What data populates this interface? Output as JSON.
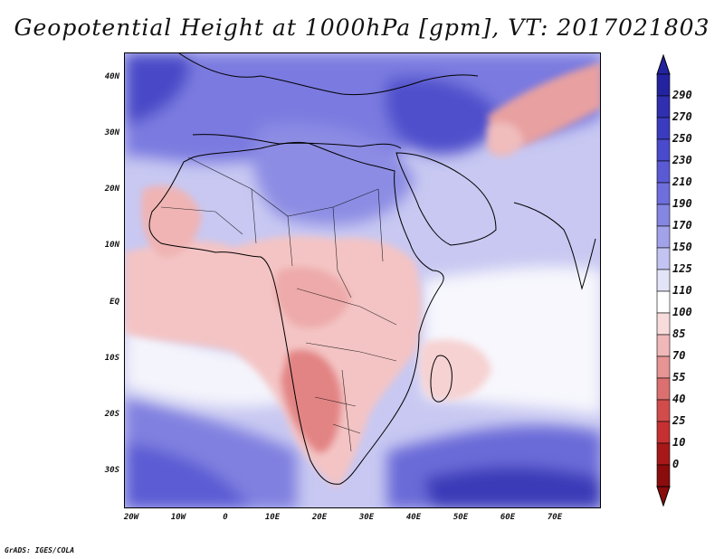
{
  "title": "Geopotential Height at 1000hPa [gpm], VT: 2017021803",
  "credit": "GrADS: IGES/COLA",
  "map": {
    "lat_labels": [
      "40N",
      "30N",
      "20N",
      "10N",
      "EQ",
      "10S",
      "20S",
      "30S"
    ],
    "lon_labels": [
      "20W",
      "10W",
      "0",
      "10E",
      "20E",
      "30E",
      "40E",
      "50E",
      "60E",
      "70E"
    ],
    "lon_range": [
      -22,
      80
    ],
    "lat_range": [
      -36,
      45
    ]
  },
  "colorbar": {
    "levels": [
      "290",
      "270",
      "250",
      "230",
      "210",
      "190",
      "170",
      "150",
      "125",
      "110",
      "100",
      "85",
      "70",
      "55",
      "40",
      "25",
      "10",
      "0"
    ],
    "colors": [
      "#2323a0",
      "#2f2fb0",
      "#3b3bc0",
      "#4a4acc",
      "#5a5ad4",
      "#6e6edc",
      "#8585e2",
      "#a2a2ea",
      "#c4c4f2",
      "#e4e4f8",
      "#ffffff",
      "#f8dcdc",
      "#f0b8b8",
      "#e69494",
      "#dc7070",
      "#d24c4c",
      "#c63030",
      "#a81818",
      "#8a0c0c"
    ]
  }
}
